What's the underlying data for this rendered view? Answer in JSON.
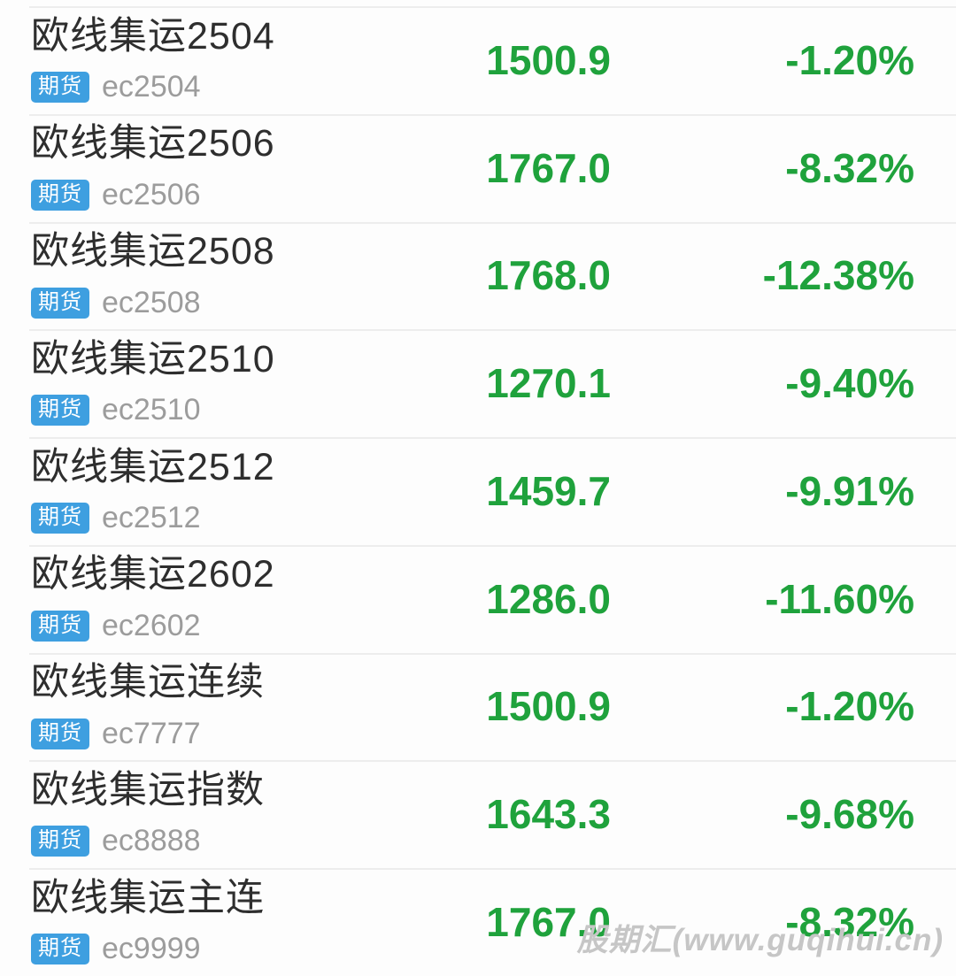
{
  "colors": {
    "price_green": "#1fa23c",
    "badge_blue": "#3e9fe0",
    "title_dark": "#2e2e2e",
    "code_gray": "#9c9c9c",
    "separator": "#ededed",
    "watermark_gray": "#c6c6c6",
    "background": "#fdfdfd"
  },
  "watermark": "股期汇(www.guqihui.cn)",
  "rows": [
    {
      "name": "欧线集运2504",
      "badge": "期货",
      "code": "ec2504",
      "price": "1500.9",
      "change": "-1.20%"
    },
    {
      "name": "欧线集运2506",
      "badge": "期货",
      "code": "ec2506",
      "price": "1767.0",
      "change": "-8.32%"
    },
    {
      "name": "欧线集运2508",
      "badge": "期货",
      "code": "ec2508",
      "price": "1768.0",
      "change": "-12.38%"
    },
    {
      "name": "欧线集运2510",
      "badge": "期货",
      "code": "ec2510",
      "price": "1270.1",
      "change": "-9.40%"
    },
    {
      "name": "欧线集运2512",
      "badge": "期货",
      "code": "ec2512",
      "price": "1459.7",
      "change": "-9.91%"
    },
    {
      "name": "欧线集运2602",
      "badge": "期货",
      "code": "ec2602",
      "price": "1286.0",
      "change": "-11.60%"
    },
    {
      "name": "欧线集运连续",
      "badge": "期货",
      "code": "ec7777",
      "price": "1500.9",
      "change": "-1.20%"
    },
    {
      "name": "欧线集运指数",
      "badge": "期货",
      "code": "ec8888",
      "price": "1643.3",
      "change": "-9.68%"
    },
    {
      "name": "欧线集运主连",
      "badge": "期货",
      "code": "ec9999",
      "price": "1767.0",
      "change": "-8.32%"
    }
  ]
}
